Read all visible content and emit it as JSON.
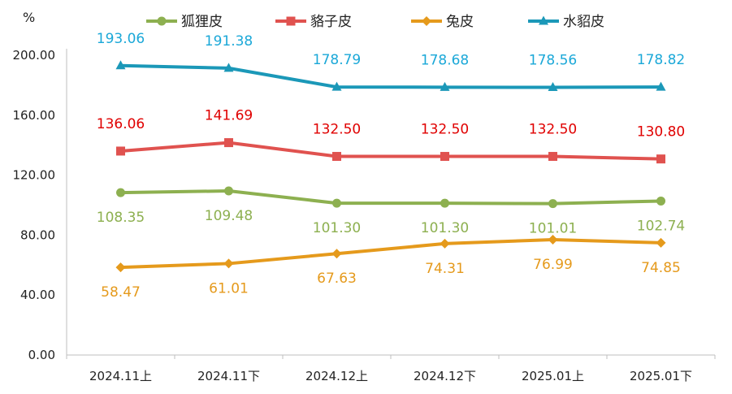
{
  "chart_data": {
    "type": "line",
    "unit_label": "%",
    "categories": [
      "2024.11上",
      "2024.11下",
      "2024.12上",
      "2024.12下",
      "2025.01上",
      "2025.01下"
    ],
    "ylim": [
      0,
      200
    ],
    "yticks": [
      "0.00",
      "40.00",
      "80.00",
      "120.00",
      "160.00",
      "200.00"
    ],
    "grid": false,
    "legend_position": "top",
    "series": [
      {
        "name": "狐狸皮",
        "color": "#8DB050",
        "marker": "circle",
        "values": [
          108.35,
          109.48,
          101.3,
          101.3,
          101.01,
          102.74
        ],
        "labels": [
          "108.35",
          "109.48",
          "101.30",
          "101.30",
          "101.01",
          "102.74"
        ]
      },
      {
        "name": "貉子皮",
        "color": "#E0524F",
        "marker": "square",
        "values": [
          136.06,
          141.69,
          132.5,
          132.5,
          132.5,
          130.8
        ],
        "labels": [
          "136.06",
          "141.69",
          "132.50",
          "132.50",
          "132.50",
          "130.80"
        ]
      },
      {
        "name": "兔皮",
        "color": "#E59A1C",
        "marker": "diamond",
        "values": [
          58.47,
          61.01,
          67.63,
          74.31,
          76.99,
          74.85
        ],
        "labels": [
          "58.47",
          "61.01",
          "67.63",
          "74.31",
          "76.99",
          "74.85"
        ]
      },
      {
        "name": "水貂皮",
        "color": "#1B98B8",
        "marker": "triangle",
        "values": [
          193.06,
          191.38,
          178.79,
          178.68,
          178.56,
          178.82
        ],
        "labels": [
          "193.06",
          "191.38",
          "178.79",
          "178.68",
          "178.56",
          "178.82"
        ]
      }
    ],
    "label_colors": {
      "狐狸皮": "#8DB050",
      "貉子皮": "#E00000",
      "兔皮": "#E59A1C",
      "水貂皮": "#1BA8D8"
    }
  }
}
